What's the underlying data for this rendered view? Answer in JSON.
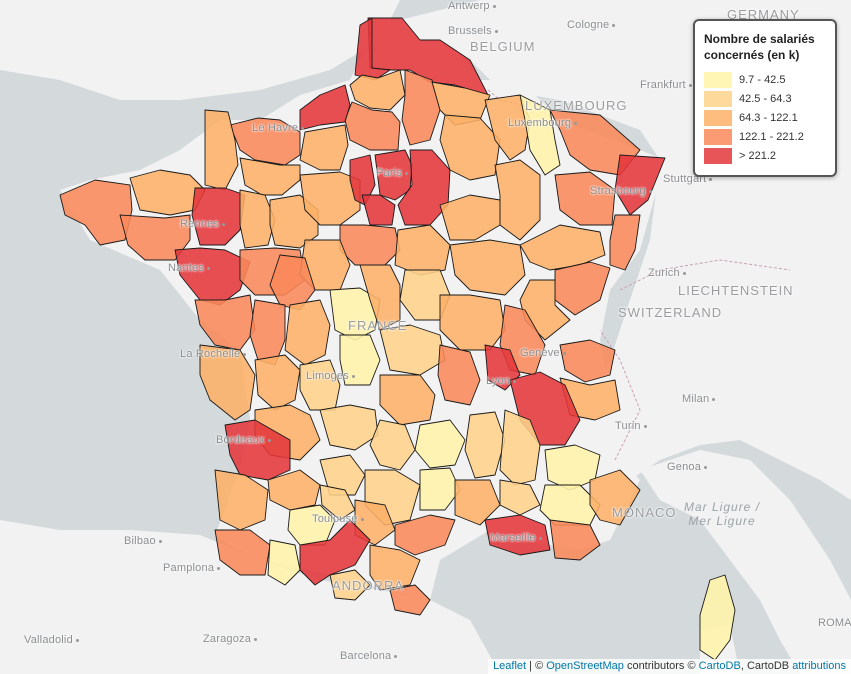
{
  "map": {
    "attribution": {
      "leaflet": "Leaflet",
      "sep1": " | © ",
      "osm": "OpenStreetMap",
      "mid": " contributors © ",
      "cartodb": "CartoDB",
      "mid2": ", CartoDB ",
      "attr": "attributions"
    },
    "places": [
      {
        "id": "germany",
        "label": "GERMANY",
        "kind": "country"
      },
      {
        "id": "belgium",
        "label": "BELGIUM",
        "kind": "country"
      },
      {
        "id": "luxembourg",
        "label": "LUXEMBOURG",
        "kind": "country"
      },
      {
        "id": "liechtenstein",
        "label": "LIECHTENSTEIN",
        "kind": "country"
      },
      {
        "id": "switzerland",
        "label": "SWITZERLAND",
        "kind": "country"
      },
      {
        "id": "france",
        "label": "FRANCE",
        "kind": "country"
      },
      {
        "id": "andorra",
        "label": "ANDORRA",
        "kind": "country"
      },
      {
        "id": "monaco",
        "label": "MONACO",
        "kind": "country"
      },
      {
        "id": "roma",
        "label": "ROMA",
        "kind": "city"
      },
      {
        "id": "antwerp",
        "label": "Antwerp",
        "kind": "city"
      },
      {
        "id": "brussels",
        "label": "Brussels",
        "kind": "city"
      },
      {
        "id": "cologne",
        "label": "Cologne",
        "kind": "city"
      },
      {
        "id": "frankfurt",
        "label": "Frankfurt",
        "kind": "city"
      },
      {
        "id": "luxembourg_city",
        "label": "Luxembourg",
        "kind": "city"
      },
      {
        "id": "stuttgart",
        "label": "Stuttgart",
        "kind": "city"
      },
      {
        "id": "strasbourg",
        "label": "Strasbourg",
        "kind": "city"
      },
      {
        "id": "zurich",
        "label": "Zurich",
        "kind": "city"
      },
      {
        "id": "geneve",
        "label": "Genève",
        "kind": "city"
      },
      {
        "id": "lyon",
        "label": "Lyon",
        "kind": "city"
      },
      {
        "id": "milan",
        "label": "Milan",
        "kind": "city"
      },
      {
        "id": "turin",
        "label": "Turin",
        "kind": "city"
      },
      {
        "id": "genoa",
        "label": "Genoa",
        "kind": "city"
      },
      {
        "id": "lehavre",
        "label": "Le Havre",
        "kind": "city"
      },
      {
        "id": "paris",
        "label": "Paris",
        "kind": "city"
      },
      {
        "id": "rennes",
        "label": "Rennes",
        "kind": "city"
      },
      {
        "id": "nantes",
        "label": "Nantes",
        "kind": "city"
      },
      {
        "id": "larochelle",
        "label": "La Rochelle",
        "kind": "city"
      },
      {
        "id": "limoges",
        "label": "Limoges",
        "kind": "city"
      },
      {
        "id": "bordeaux",
        "label": "Bordeaux",
        "kind": "city"
      },
      {
        "id": "toulouse",
        "label": "Toulouse",
        "kind": "city"
      },
      {
        "id": "marseille",
        "label": "Marseille",
        "kind": "city"
      },
      {
        "id": "bilbao",
        "label": "Bilbao",
        "kind": "city"
      },
      {
        "id": "pamplona",
        "label": "Pamplona",
        "kind": "city"
      },
      {
        "id": "valladolid",
        "label": "Valladolid",
        "kind": "city"
      },
      {
        "id": "zaragoza",
        "label": "Zaragoza",
        "kind": "city"
      },
      {
        "id": "barcelona",
        "label": "Barcelona",
        "kind": "city"
      },
      {
        "id": "mar_ligure",
        "label": "Mar Ligure / Mer Ligure",
        "kind": "sea"
      }
    ]
  },
  "legend": {
    "title": "Nombre de salariés concernés (en k)",
    "classes": [
      {
        "label": "9.7 - 42.5",
        "color": "#fff3a8"
      },
      {
        "label": "42.5 - 64.3",
        "color": "#fed28b"
      },
      {
        "label": "64.3 - 122.1",
        "color": "#fdb168"
      },
      {
        "label": "122.1 - 221.2",
        "color": "#f9895a"
      },
      {
        "label": "> 221.2",
        "color": "#e4373b"
      }
    ]
  }
}
